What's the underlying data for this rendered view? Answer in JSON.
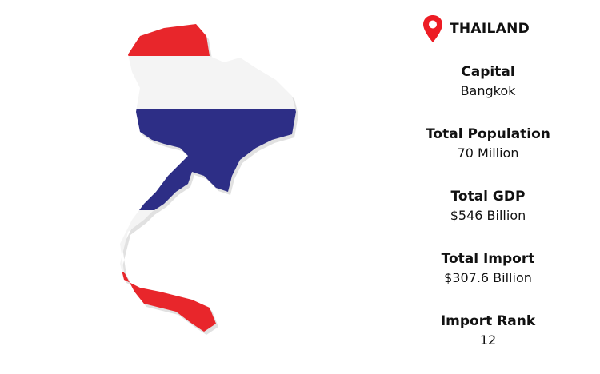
{
  "country": "THAILAND",
  "icons": {
    "pin": "map-pin-icon"
  },
  "colors": {
    "red": "#e8262b",
    "white": "#f4f4f4",
    "blue": "#2d2e86",
    "pin": "#ed1c24"
  },
  "facts": [
    {
      "label": "Capital",
      "value": "Bangkok"
    },
    {
      "label": "Total Population",
      "value": "70 Million"
    },
    {
      "label": "Total GDP",
      "value": "$546 Billion"
    },
    {
      "label": "Total Import",
      "value": "$307.6 Billion"
    },
    {
      "label": "Import Rank",
      "value": "12"
    }
  ]
}
